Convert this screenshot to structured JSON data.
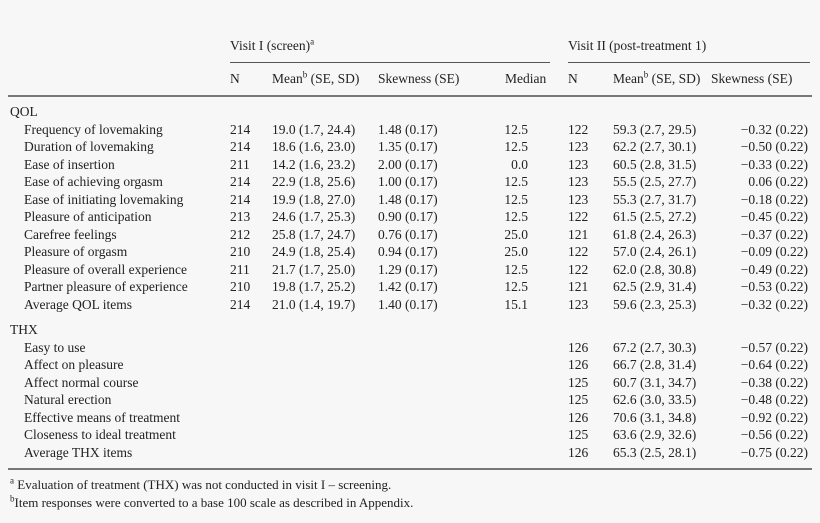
{
  "header": {
    "group1": "Visit I (screen)",
    "group1_sup": "a",
    "group2": "Visit II (post-treatment 1)",
    "columns": [
      "N",
      "Mean",
      "(SE, SD)",
      "Skewness (SE)",
      "Median",
      "N",
      "Mean",
      "(SE, SD)",
      "Skewness (SE)"
    ],
    "mean_sup": "b"
  },
  "sections": [
    {
      "title": "QOL",
      "rows": [
        [
          "Frequency of lovemaking",
          "214",
          "19.0 (1.7, 24.4)",
          "1.48 (0.17)",
          "12.5",
          "122",
          "59.3 (2.7, 29.5)",
          "−0.32 (0.22)"
        ],
        [
          "Duration of lovemaking",
          "214",
          "18.6 (1.6, 23.0)",
          "1.35 (0.17)",
          "12.5",
          "123",
          "62.2 (2.7, 30.1)",
          "−0.50 (0.22)"
        ],
        [
          "Ease of insertion",
          "211",
          "14.2 (1.6, 23.2)",
          "2.00 (0.17)",
          "0.0",
          "123",
          "60.5 (2.8, 31.5)",
          "−0.33 (0.22)"
        ],
        [
          "Ease of achieving orgasm",
          "214",
          "22.9 (1.8, 25.6)",
          "1.00 (0.17)",
          "12.5",
          "123",
          "55.5 (2.5, 27.7)",
          "0.06 (0.22)"
        ],
        [
          "Ease of initiating lovemaking",
          "214",
          "19.9 (1.8, 27.0)",
          "1.48 (0.17)",
          "12.5",
          "123",
          "55.3 (2.7, 31.7)",
          "−0.18 (0.22)"
        ],
        [
          "Pleasure of anticipation",
          "213",
          "24.6 (1.7, 25.3)",
          "0.90 (0.17)",
          "12.5",
          "122",
          "61.5 (2.5, 27.2)",
          "−0.45 (0.22)"
        ],
        [
          "Carefree feelings",
          "212",
          "25.8 (1.7, 24.7)",
          "0.76 (0.17)",
          "25.0",
          "121",
          "61.8 (2.4, 26.3)",
          "−0.37 (0.22)"
        ],
        [
          "Pleasure of orgasm",
          "210",
          "24.9 (1.8, 25.4)",
          "0.94 (0.17)",
          "25.0",
          "122",
          "57.0 (2.4, 26.1)",
          "−0.09 (0.22)"
        ],
        [
          "Pleasure of overall experience",
          "211",
          "21.7 (1.7, 25.0)",
          "1.29 (0.17)",
          "12.5",
          "122",
          "62.0 (2.8, 30.8)",
          "−0.49 (0.22)"
        ],
        [
          "Partner pleasure of experience",
          "210",
          "19.8 (1.7, 25.2)",
          "1.42 (0.17)",
          "12.5",
          "121",
          "62.5 (2.9, 31.4)",
          "−0.53 (0.22)"
        ],
        [
          "Average QOL items",
          "214",
          "21.0 (1.4, 19.7)",
          "1.40 (0.17)",
          "15.1",
          "123",
          "59.6 (2.3, 25.3)",
          "−0.32 (0.22)"
        ]
      ]
    },
    {
      "title": "THX",
      "rows": [
        [
          "Easy to use",
          "",
          "",
          "",
          "",
          "126",
          "67.2 (2.7, 30.3)",
          "−0.57 (0.22)"
        ],
        [
          "Affect on pleasure",
          "",
          "",
          "",
          "",
          "126",
          "66.7 (2.8, 31.4)",
          "−0.64 (0.22)"
        ],
        [
          "Affect normal course",
          "",
          "",
          "",
          "",
          "125",
          "60.7 (3.1, 34.7)",
          "−0.38 (0.22)"
        ],
        [
          "Natural erection",
          "",
          "",
          "",
          "",
          "125",
          "62.6 (3.0, 33.5)",
          "−0.48 (0.22)"
        ],
        [
          "Effective means of treatment",
          "",
          "",
          "",
          "",
          "126",
          "70.6 (3.1, 34.8)",
          "−0.92 (0.22)"
        ],
        [
          "Closeness to ideal treatment",
          "",
          "",
          "",
          "",
          "125",
          "63.6 (2.9, 32.6)",
          "−0.56 (0.22)"
        ],
        [
          "Average THX items",
          "",
          "",
          "",
          "",
          "126",
          "65.3 (2.5, 28.1)",
          "−0.75 (0.22)"
        ]
      ]
    }
  ],
  "footnotes": [
    {
      "mark": "a",
      "text": "Evaluation of treatment (THX) was not conducted in visit I – screening."
    },
    {
      "mark": "b",
      "text": "Item responses were converted to a base 100 scale as described in Appendix."
    }
  ]
}
